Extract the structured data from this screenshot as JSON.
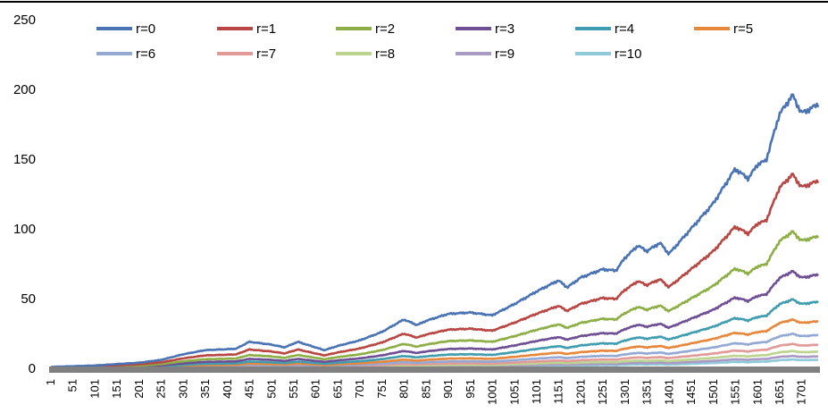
{
  "chart_data": {
    "type": "line",
    "title": "",
    "xlabel": "",
    "ylabel": "",
    "ylim": [
      0,
      250
    ],
    "yticks": [
      0,
      50,
      100,
      150,
      200,
      250
    ],
    "xlim": [
      1,
      1740
    ],
    "xticks": [
      1,
      51,
      101,
      151,
      201,
      251,
      301,
      351,
      401,
      451,
      501,
      551,
      601,
      651,
      701,
      751,
      801,
      851,
      901,
      951,
      1001,
      1051,
      1101,
      1151,
      1201,
      1251,
      1301,
      1351,
      1401,
      1451,
      1501,
      1551,
      1601,
      1651,
      1701
    ],
    "grid": false,
    "legend_position": "top",
    "base_x": [
      1,
      100,
      200,
      250,
      300,
      350,
      420,
      450,
      500,
      530,
      560,
      600,
      620,
      650,
      700,
      750,
      800,
      830,
      850,
      900,
      950,
      1000,
      1050,
      1100,
      1150,
      1170,
      1200,
      1250,
      1280,
      1300,
      1330,
      1350,
      1380,
      1400,
      1450,
      1500,
      1550,
      1580,
      1600,
      1620,
      1650,
      1680,
      1700,
      1720,
      1740
    ],
    "base_y": [
      1,
      2,
      4,
      6,
      10,
      13,
      14,
      19,
      17,
      15,
      19,
      15,
      13,
      16,
      20,
      26,
      35,
      31,
      34,
      39,
      40,
      38,
      46,
      55,
      63,
      58,
      65,
      71,
      70,
      79,
      88,
      84,
      90,
      82,
      100,
      118,
      143,
      136,
      146,
      149,
      182,
      196,
      183,
      186,
      190
    ],
    "series": [
      {
        "name": "r=0",
        "color": "#4a73b3",
        "scale": 1.0
      },
      {
        "name": "r=1",
        "color": "#b84744",
        "scale": 0.71
      },
      {
        "name": "r=2",
        "color": "#8cae45",
        "scale": 0.5
      },
      {
        "name": "r=3",
        "color": "#6e4f94",
        "scale": 0.355
      },
      {
        "name": "r=4",
        "color": "#3f9daf",
        "scale": 0.252
      },
      {
        "name": "r=5",
        "color": "#e7873c",
        "scale": 0.178
      },
      {
        "name": "r=6",
        "color": "#93a9d4",
        "scale": 0.126
      },
      {
        "name": "r=7",
        "color": "#e29a98",
        "scale": 0.089
      },
      {
        "name": "r=8",
        "color": "#bcd48e",
        "scale": 0.063
      },
      {
        "name": "r=9",
        "color": "#aa9ac3",
        "scale": 0.045
      },
      {
        "name": "r=10",
        "color": "#8fcadb",
        "scale": 0.032
      }
    ]
  }
}
